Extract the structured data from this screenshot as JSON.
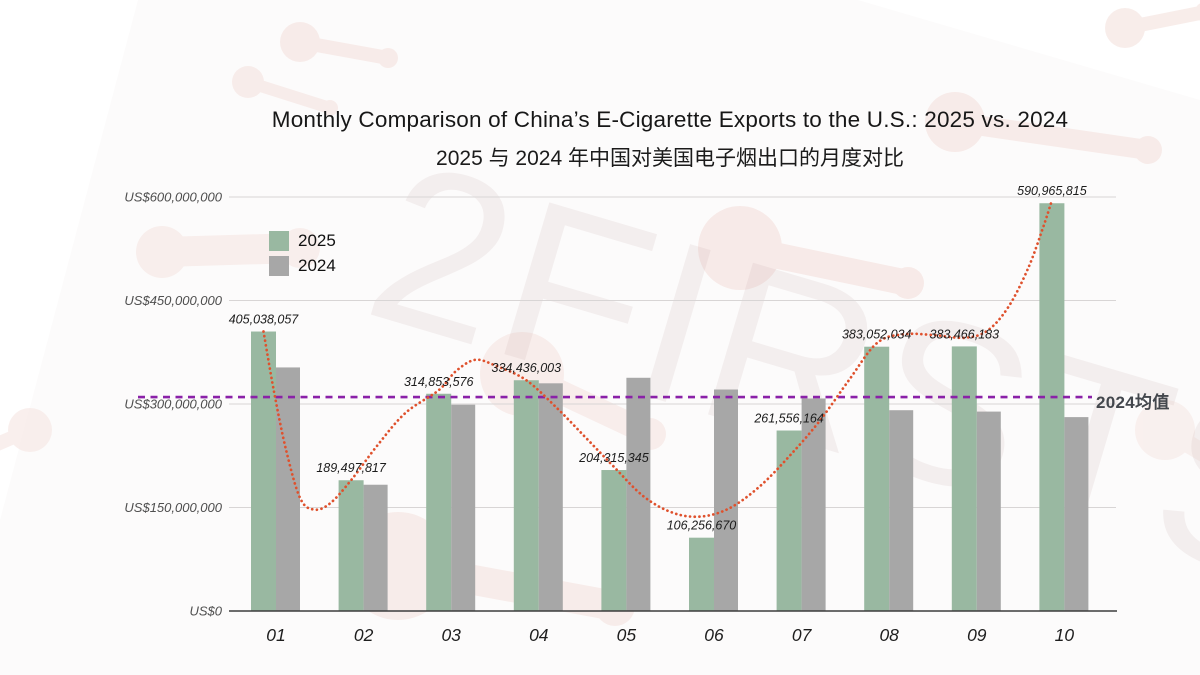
{
  "watermark": {
    "text": "2FIRSTS"
  },
  "header": {
    "title": "Monthly Comparison of China’s E-Cigarette Exports to the U.S.: 2025 vs. 2024",
    "subtitle_zh": "2025 与 2024 年中国对美国电子烟出口的月度对比"
  },
  "chart_data": {
    "type": "bar",
    "title": "Monthly Comparison of China’s E-Cigarette Exports to the U.S.: 2025 vs. 2024",
    "subtitle": "2025 与 2024 年中国对美国电子烟出口的月度对比",
    "categories": [
      "01",
      "02",
      "03",
      "04",
      "05",
      "06",
      "07",
      "08",
      "09",
      "10"
    ],
    "ylim": [
      0,
      600000000
    ],
    "y_ticks": [
      {
        "value": 600000000,
        "label": "US$600,000,000"
      },
      {
        "value": 450000000,
        "label": "US$450,000,000"
      },
      {
        "value": 300000000,
        "label": "US$300,000,000"
      },
      {
        "value": 150000000,
        "label": "US$150,000,000"
      },
      {
        "value": 0,
        "label": "US$0"
      }
    ],
    "grid": "horizontal",
    "legend_position": "top-left-inside",
    "series": [
      {
        "name": "2025",
        "color": "#99b8a1",
        "values": [
          405038057,
          189497817,
          314853576,
          334436003,
          204315345,
          106256670,
          261556164,
          383052034,
          383466183,
          590965815
        ]
      },
      {
        "name": "2024",
        "color": "#a7a7a7",
        "values": [
          353000000,
          183000000,
          299000000,
          330000000,
          338000000,
          321000000,
          308000000,
          291000000,
          289000000,
          281000000
        ]
      }
    ],
    "value_labels": [
      "405,038,057",
      "189,497,817",
      "314,853,576",
      "334,436,003",
      "204,315,345",
      "106,256,670",
      "261,556,164",
      "383,052,034",
      "383,466,183",
      "590,965,815"
    ],
    "average_line": {
      "label": "2024均值",
      "value": 310000000,
      "color": "#8a21a8",
      "style": "dashed"
    },
    "trend_curve": {
      "color": "#df512d",
      "style": "dotted",
      "fits_series": "2025",
      "points": [
        [
          1.0,
          405038057
        ],
        [
          1.12,
          318000000
        ],
        [
          1.26,
          232000000
        ],
        [
          1.42,
          163000000
        ],
        [
          1.58,
          147000000
        ],
        [
          1.76,
          156000000
        ],
        [
          2.0,
          189497817
        ],
        [
          2.3,
          240000000
        ],
        [
          2.62,
          287000000
        ],
        [
          3.0,
          320000000
        ],
        [
          3.2,
          348000000
        ],
        [
          3.42,
          364000000
        ],
        [
          3.66,
          355000000
        ],
        [
          4.0,
          334436003
        ],
        [
          4.35,
          294000000
        ],
        [
          4.68,
          251000000
        ],
        [
          5.0,
          209000000
        ],
        [
          5.34,
          166000000
        ],
        [
          5.68,
          142000000
        ],
        [
          6.0,
          137000000
        ],
        [
          6.32,
          149000000
        ],
        [
          6.66,
          180000000
        ],
        [
          7.0,
          224000000
        ],
        [
          7.34,
          274000000
        ],
        [
          7.68,
          334000000
        ],
        [
          8.0,
          388000000
        ],
        [
          8.3,
          401000000
        ],
        [
          8.64,
          400000000
        ],
        [
          9.0,
          396000000
        ],
        [
          9.26,
          406000000
        ],
        [
          9.5,
          440000000
        ],
        [
          9.73,
          497000000
        ],
        [
          9.9,
          556000000
        ],
        [
          9.99,
          590965815
        ]
      ]
    }
  }
}
